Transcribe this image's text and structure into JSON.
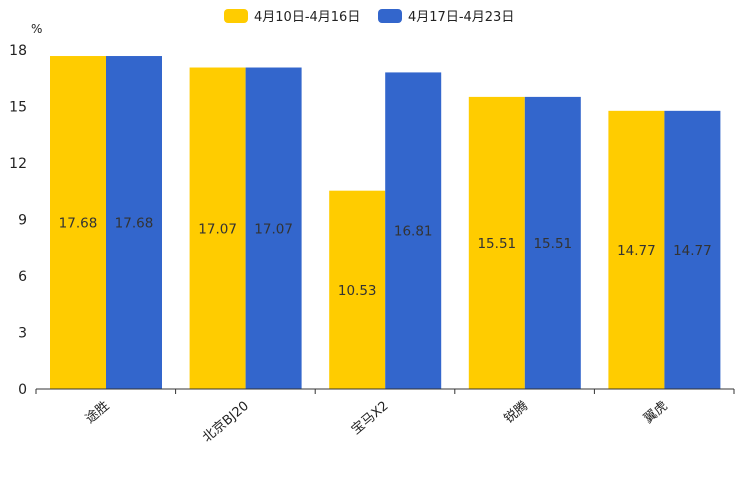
{
  "chart_data": {
    "type": "bar",
    "title": "",
    "xlabel": "",
    "ylabel": "%",
    "ylim": [
      0,
      18
    ],
    "yticks": [
      0,
      3,
      6,
      9,
      12,
      15,
      18
    ],
    "grid": false,
    "legend_position": "top-center",
    "categories": [
      "途胜",
      "北京BJ20",
      "宝马X2",
      "锐腾",
      "翼虎"
    ],
    "series": [
      {
        "name": "4月10日-4月16日",
        "color": "#FFCC00",
        "values": [
          17.68,
          17.07,
          10.53,
          15.51,
          14.77
        ]
      },
      {
        "name": "4月17日-4月23日",
        "color": "#3366CC",
        "values": [
          17.68,
          17.07,
          16.81,
          15.51,
          14.77
        ]
      }
    ],
    "data_labels": [
      [
        "17.68",
        "17.07",
        "10.53",
        "15.51",
        "14.77"
      ],
      [
        "17.68",
        "17.07",
        "16.81",
        "15.51",
        "14.77"
      ]
    ]
  }
}
